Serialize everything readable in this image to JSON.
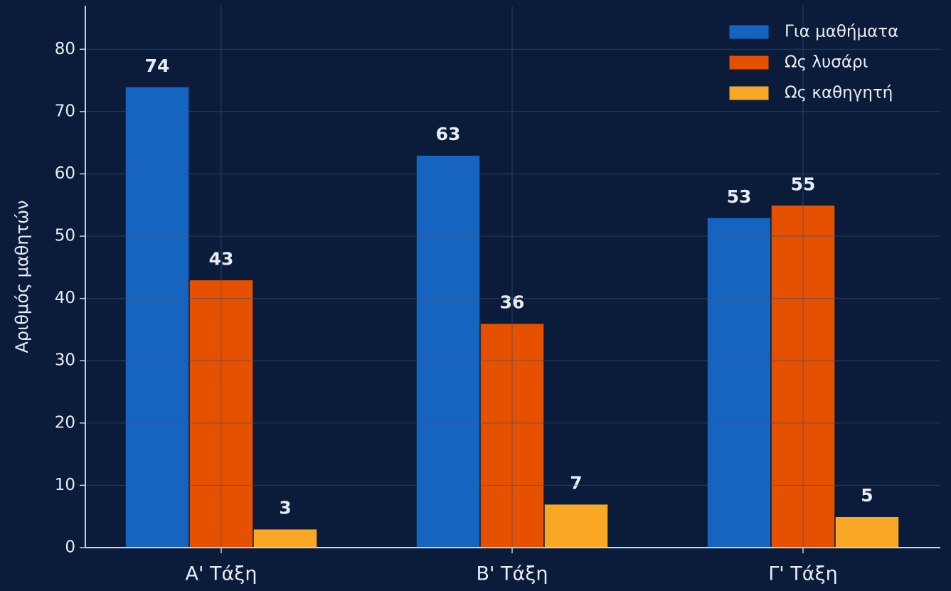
{
  "chart_data": {
    "type": "bar",
    "categories": [
      "Α' Τάξη",
      "Β' Τάξη",
      "Γ' Τάξη"
    ],
    "series": [
      {
        "name": "Για μαθήματα",
        "color": "#1565c0",
        "values": [
          74,
          63,
          53
        ]
      },
      {
        "name": "Ως λυσάρι",
        "color": "#e65100",
        "values": [
          43,
          36,
          55
        ]
      },
      {
        "name": "Ως καθηγητή",
        "color": "#f9a825",
        "values": [
          3,
          7,
          5
        ]
      }
    ],
    "ylabel": "Αριθμός μαθητών",
    "ylim": [
      0,
      87
    ],
    "yticks": [
      0,
      10,
      20,
      30,
      40,
      50,
      60,
      70,
      80
    ],
    "grid": true,
    "legend": "upper right"
  }
}
